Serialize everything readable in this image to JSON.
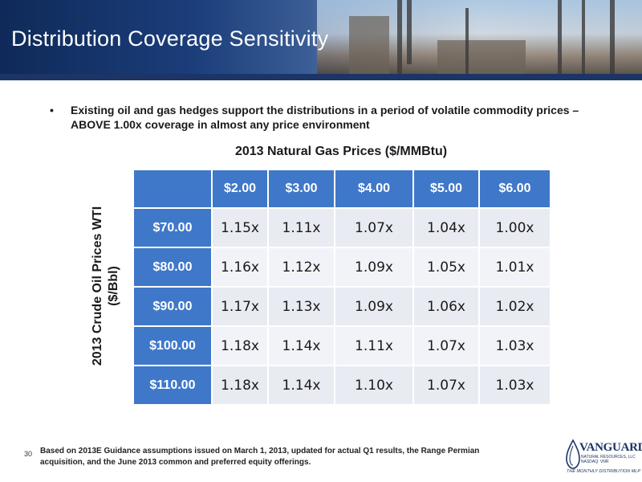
{
  "header": {
    "title": "Distribution Coverage Sensitivity"
  },
  "bullet": {
    "text": "Existing oil and gas hedges support the distributions in a period of volatile commodity prices – ABOVE 1.00x coverage in almost any price environment"
  },
  "table": {
    "title": "2013 Natural Gas Prices ($/MMBtu)",
    "row_axis_label_line1": "2013 Crude Oil Prices WTI",
    "row_axis_label_line2": "($/Bbl)",
    "columns": [
      "$2.00",
      "$3.00",
      "$4.00",
      "$5.00",
      "$6.00"
    ],
    "rows": [
      {
        "label": "$70.00",
        "values": [
          "1.15x",
          "1.11x",
          "1.07x",
          "1.04x",
          "1.00x"
        ]
      },
      {
        "label": "$80.00",
        "values": [
          "1.16x",
          "1.12x",
          "1.09x",
          "1.05x",
          "1.01x"
        ]
      },
      {
        "label": "$90.00",
        "values": [
          "1.17x",
          "1.13x",
          "1.09x",
          "1.06x",
          "1.02x"
        ]
      },
      {
        "label": "$100.00",
        "values": [
          "1.18x",
          "1.14x",
          "1.11x",
          "1.07x",
          "1.03x"
        ]
      },
      {
        "label": "$110.00",
        "values": [
          "1.18x",
          "1.14x",
          "1.10x",
          "1.07x",
          "1.03x"
        ]
      }
    ]
  },
  "footer": {
    "page_number": "30",
    "note": "Based on 2013E Guidance assumptions issued on March 1, 2013, updated for actual Q1 results, the Range Permian acquisition, and the June 2013 common and preferred equity offerings."
  },
  "logo": {
    "name": "VANGUARD",
    "sub": "NATURAL RESOURCES, LLC",
    "ticker": "NASDAQ: VNR",
    "tagline": "THE MONTHLY DISTRIBUTION MLP"
  },
  "colors": {
    "header_navy": "#1c3466",
    "table_header_blue": "#3f78c9",
    "cell_background": "#e9ebf3"
  }
}
